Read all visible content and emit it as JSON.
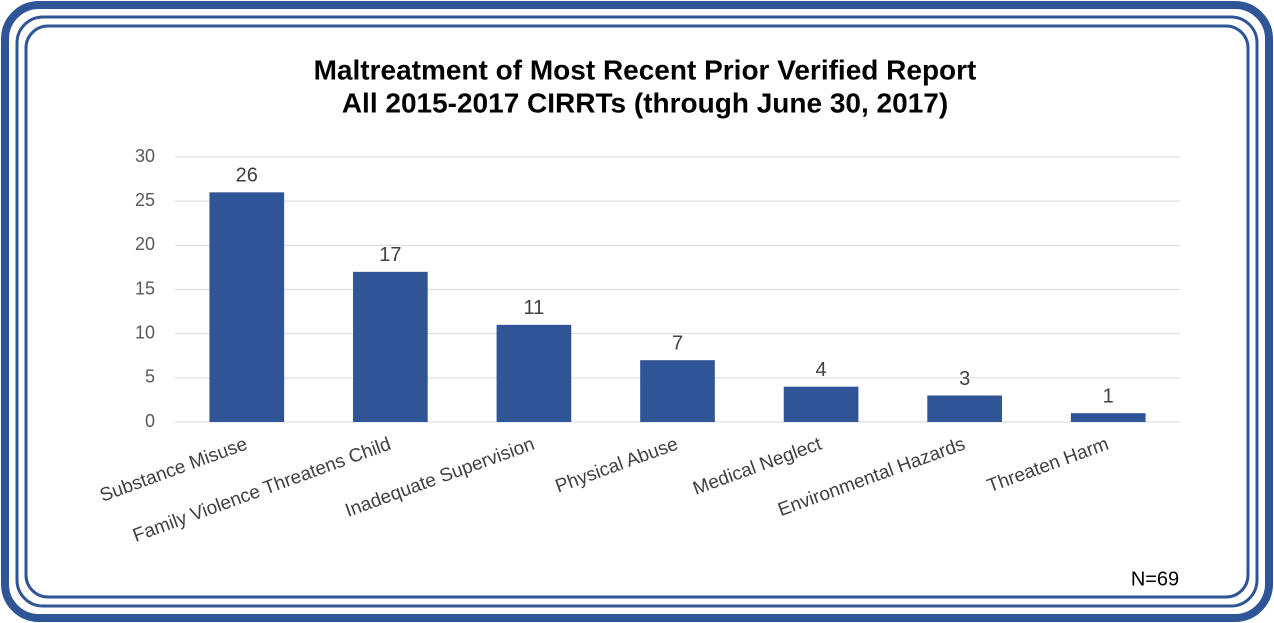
{
  "chart_data": {
    "type": "bar",
    "title": "Maltreatment of Most Recent Prior Verified Report",
    "subtitle": "All 2015-2017 CIRRTs (through June 30, 2017)",
    "categories": [
      "Substance Misuse",
      "Family Violence Threatens Child",
      "Inadequate Supervision",
      "Physical Abuse",
      "Medical Neglect",
      "Environmental Hazards",
      "Threaten Harm"
    ],
    "values": [
      26,
      17,
      11,
      7,
      4,
      3,
      1
    ],
    "color": "#2f5597",
    "ylim": [
      0,
      30
    ],
    "yticks": [
      0,
      5,
      10,
      15,
      20,
      25,
      30
    ],
    "grid": true,
    "annotation": "N=69"
  }
}
